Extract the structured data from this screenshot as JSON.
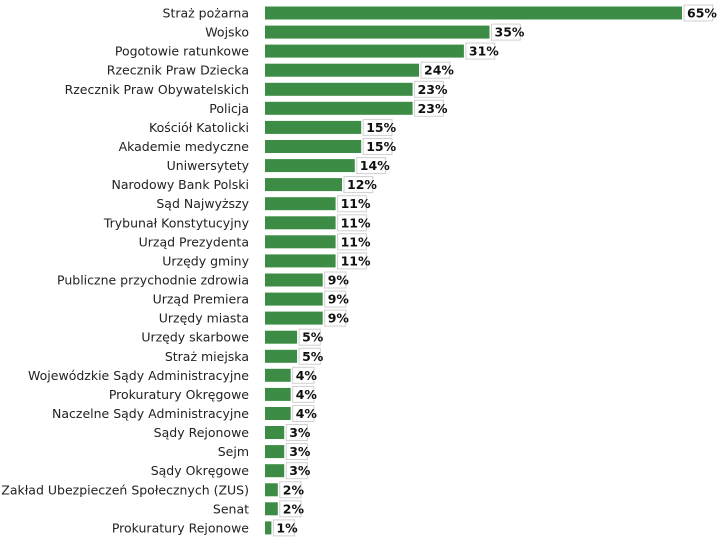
{
  "chart_data": {
    "type": "bar",
    "orientation": "horizontal",
    "bar_color": "#3c8c45",
    "grid": false,
    "legend": "none",
    "xlim": [
      0,
      65
    ],
    "categories": [
      "Straż pożarna",
      "Wojsko",
      "Pogotowie ratunkowe",
      "Rzecznik Praw Dziecka",
      "Rzecznik Praw Obywatelskich",
      "Policja",
      "Kościół Katolicki",
      "Akademie medyczne",
      "Uniwersytety",
      "Narodowy Bank Polski",
      "Sąd Najwyższy",
      "Trybunał Konstytucyjny",
      "Urząd Prezydenta",
      "Urzędy gminy",
      "Publiczne przychodnie zdrowia",
      "Urząd Premiera",
      "Urzędy miasta",
      "Urzędy skarbowe",
      "Straż miejska",
      "Wojewódzkie Sądy Administracyjne",
      "Prokuratury Okręgowe",
      "Naczelne Sądy Administracyjne",
      "Sądy Rejonowe",
      "Sejm",
      "Sądy Okręgowe",
      "Zakład Ubezpieczeń Społecznych (ZUS)",
      "Senat",
      "Prokuratury Rejonowe"
    ],
    "values": [
      65,
      35,
      31,
      24,
      23,
      23,
      15,
      15,
      14,
      12,
      11,
      11,
      11,
      11,
      9,
      9,
      9,
      5,
      5,
      4,
      4,
      4,
      3,
      3,
      3,
      2,
      2,
      1
    ],
    "value_labels": [
      "65%",
      "35%",
      "31%",
      "24%",
      "23%",
      "23%",
      "15%",
      "15%",
      "14%",
      "12%",
      "11%",
      "11%",
      "11%",
      "11%",
      "9%",
      "9%",
      "9%",
      "5%",
      "5%",
      "4%",
      "4%",
      "4%",
      "3%",
      "3%",
      "3%",
      "2%",
      "2%",
      "1%"
    ]
  }
}
